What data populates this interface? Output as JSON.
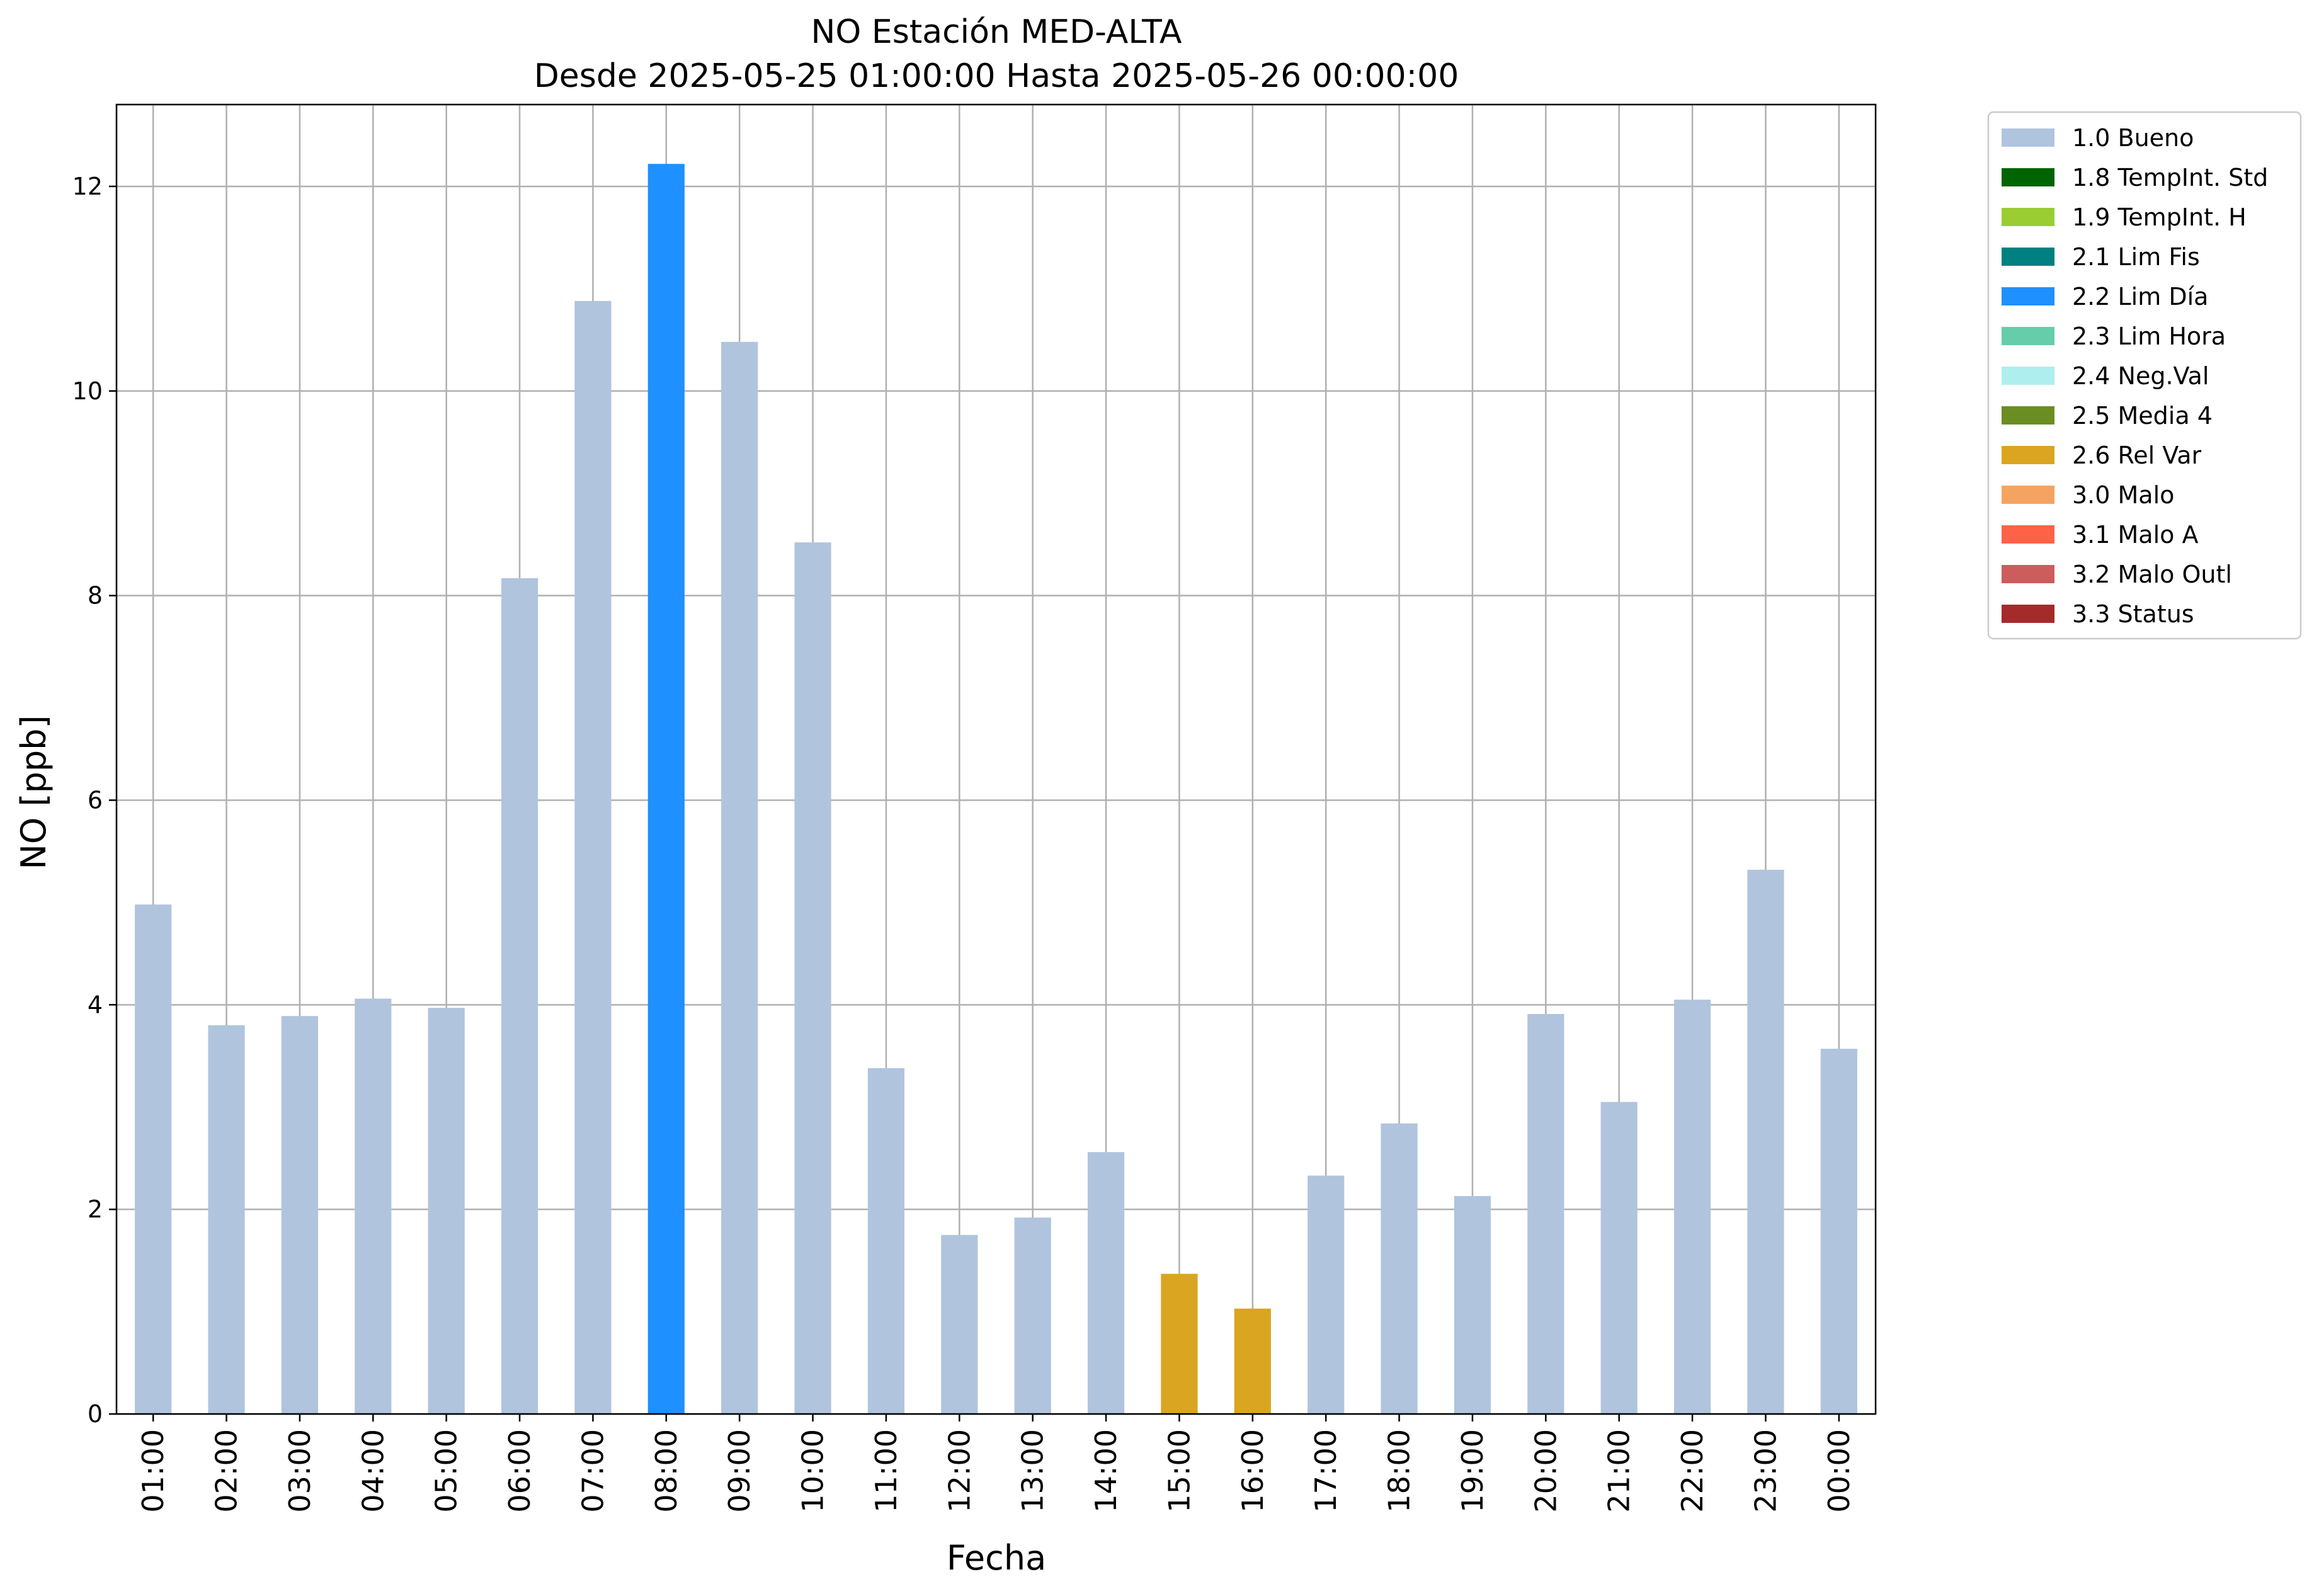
{
  "chart_data": {
    "type": "bar",
    "title": [
      "NO Estación MED-ALTA",
      "Desde 2025-05-25 01:00:00 Hasta 2025-05-26 00:00:00"
    ],
    "xlabel": "Fecha",
    "ylabel": "NO [ppb]",
    "ylim": [
      0,
      12.8
    ],
    "yticks": [
      0,
      2,
      4,
      6,
      8,
      10,
      12
    ],
    "grid": true,
    "legend_position": "outside-top-right",
    "categories": [
      "01:00",
      "02:00",
      "03:00",
      "04:00",
      "05:00",
      "06:00",
      "07:00",
      "08:00",
      "09:00",
      "10:00",
      "11:00",
      "12:00",
      "13:00",
      "14:00",
      "15:00",
      "16:00",
      "17:00",
      "18:00",
      "19:00",
      "20:00",
      "21:00",
      "22:00",
      "23:00",
      "00:00"
    ],
    "values": [
      4.98,
      3.8,
      3.89,
      4.06,
      3.97,
      8.17,
      10.88,
      12.22,
      10.48,
      8.52,
      3.38,
      1.75,
      1.92,
      2.56,
      1.37,
      1.03,
      2.33,
      2.84,
      2.13,
      3.91,
      3.05,
      4.05,
      5.32,
      3.57
    ],
    "flags": [
      "1.0",
      "1.0",
      "1.0",
      "1.0",
      "1.0",
      "1.0",
      "1.0",
      "2.2",
      "1.0",
      "1.0",
      "1.0",
      "1.0",
      "1.0",
      "1.0",
      "2.6",
      "2.6",
      "1.0",
      "1.0",
      "1.0",
      "1.0",
      "1.0",
      "1.0",
      "1.0",
      "1.0"
    ],
    "legend": [
      {
        "code": "1.0",
        "label": "1.0 Bueno",
        "color": "#b0c4de"
      },
      {
        "code": "1.8",
        "label": "1.8 TempInt. Std",
        "color": "#006400"
      },
      {
        "code": "1.9",
        "label": "1.9 TempInt. H",
        "color": "#9acd32"
      },
      {
        "code": "2.1",
        "label": "2.1 Lim Fis",
        "color": "#008080"
      },
      {
        "code": "2.2",
        "label": "2.2 Lim Día",
        "color": "#1e90ff"
      },
      {
        "code": "2.3",
        "label": "2.3 Lim Hora",
        "color": "#66cdaa"
      },
      {
        "code": "2.4",
        "label": "2.4 Neg.Val",
        "color": "#afeeee"
      },
      {
        "code": "2.5",
        "label": "2.5 Media 4",
        "color": "#6b8e23"
      },
      {
        "code": "2.6",
        "label": "2.6 Rel Var",
        "color": "#daa520"
      },
      {
        "code": "3.0",
        "label": "3.0 Malo",
        "color": "#f4a460"
      },
      {
        "code": "3.1",
        "label": "3.1 Malo A",
        "color": "#ff6347"
      },
      {
        "code": "3.2",
        "label": "3.2 Malo Outl",
        "color": "#cd5c5c"
      },
      {
        "code": "3.3",
        "label": "3.3 Status",
        "color": "#a52a2a"
      }
    ]
  }
}
